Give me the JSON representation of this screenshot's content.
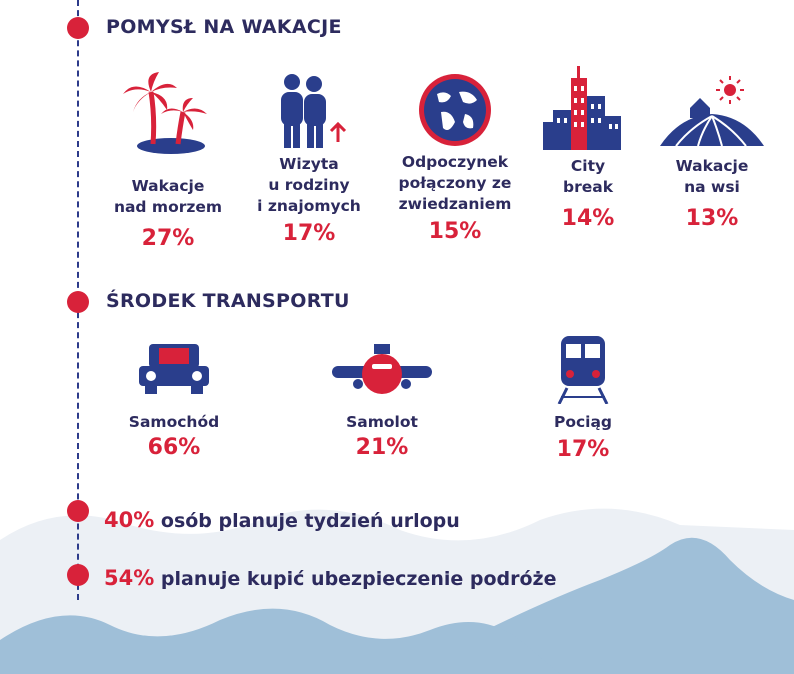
{
  "sections": {
    "vacation_idea": {
      "title": "POMYSŁ NA WAKACJE",
      "items": [
        {
          "label_lines": [
            "Wakacje",
            "nad morzem"
          ],
          "percent": "27%",
          "icon": "palm-island-icon"
        },
        {
          "label_lines": [
            "Wizyta",
            "u rodziny",
            "i znajomych"
          ],
          "percent": "17%",
          "icon": "family-icon"
        },
        {
          "label_lines": [
            "Odpoczynek",
            "połączony ze",
            "zwiedzaniem"
          ],
          "percent": "15%",
          "icon": "globe-icon"
        },
        {
          "label_lines": [
            "City",
            "break"
          ],
          "percent": "14%",
          "icon": "city-icon"
        },
        {
          "label_lines": [
            "Wakacje",
            "na wsi"
          ],
          "percent": "13%",
          "icon": "farm-icon"
        }
      ]
    },
    "transport": {
      "title": "ŚRODEK TRANSPORTU",
      "items": [
        {
          "label": "Samochód",
          "percent": "66%",
          "icon": "car-icon"
        },
        {
          "label": "Samolot",
          "percent": "21%",
          "icon": "plane-icon"
        },
        {
          "label": "Pociąg",
          "percent": "17%",
          "icon": "train-icon"
        }
      ]
    }
  },
  "stats": [
    {
      "number": "40%",
      "text": "osób planuje tydzień urlopu"
    },
    {
      "number": "54%",
      "text": "planuje kupić ubezpieczenie podróże"
    }
  ],
  "colors": {
    "accent": "#d8223a",
    "navy": "#2d2b5e",
    "icon_blue": "#2a3e8c",
    "wave_blue": "#9fbfd8",
    "wave_light": "#e9eef3"
  }
}
